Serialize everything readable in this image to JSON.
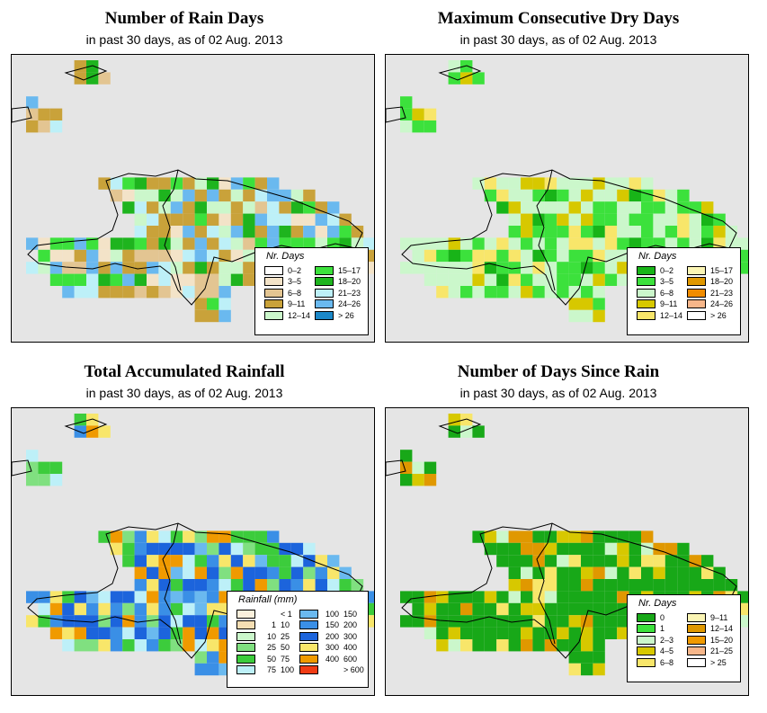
{
  "panels": [
    {
      "title": "Number of Rain Days",
      "subtitle": "in past 30 days, as of  02 Aug. 2013",
      "legend_title": "Nr. Days",
      "legend": [
        {
          "label": "0–2",
          "color": "#ffffff"
        },
        {
          "label": "3–5",
          "color": "#f3e3c8"
        },
        {
          "label": "6–8",
          "color": "#e3c592"
        },
        {
          "label": "9–11",
          "color": "#c9a23a"
        },
        {
          "label": "12–14",
          "color": "#cbf7cb"
        },
        {
          "label": "15–17",
          "color": "#3ce13c"
        },
        {
          "label": "18–20",
          "color": "#1eb41e"
        },
        {
          "label": "21–23",
          "color": "#bdf0f8"
        },
        {
          "label": "24–26",
          "color": "#6ab9ef"
        },
        {
          "label": "> 26",
          "color": "#1c88c8"
        }
      ]
    },
    {
      "title": "Maximum Consecutive Dry Days",
      "subtitle": "in past 30 days, as of  02 Aug. 2013",
      "legend_title": "Nr. Days",
      "legend": [
        {
          "label": "0–2",
          "color": "#18b418"
        },
        {
          "label": "3–5",
          "color": "#3ce13c"
        },
        {
          "label": "6–8",
          "color": "#cbf7cb"
        },
        {
          "label": "9–11",
          "color": "#d7c800"
        },
        {
          "label": "12–14",
          "color": "#f8e66a"
        },
        {
          "label": "15–17",
          "color": "#fbf5b4"
        },
        {
          "label": "18–20",
          "color": "#e09800"
        },
        {
          "label": "21–23",
          "color": "#f08c00"
        },
        {
          "label": "24–26",
          "color": "#f6b68a"
        },
        {
          "label": "> 26",
          "color": "#ffffff"
        }
      ]
    },
    {
      "title": "Total Accumulated Rainfall",
      "subtitle": "in past 30 days, as of  02 Aug. 2013",
      "legend_title": "Rainfall (mm)",
      "legend": [
        {
          "from": "",
          "to": "< 1",
          "color": "#fbf0dc"
        },
        {
          "from": "1",
          "to": "10",
          "color": "#f5deb3"
        },
        {
          "from": "10",
          "to": "25",
          "color": "#cbf7cb"
        },
        {
          "from": "25",
          "to": "50",
          "color": "#80e080"
        },
        {
          "from": "50",
          "to": "75",
          "color": "#3ccc3c"
        },
        {
          "from": "75",
          "to": "100",
          "color": "#bdf0f8"
        },
        {
          "from": "100",
          "to": "150",
          "color": "#6ab9ef"
        },
        {
          "from": "150",
          "to": "200",
          "color": "#3a8fe6"
        },
        {
          "from": "200",
          "to": "300",
          "color": "#1c64dc"
        },
        {
          "from": "300",
          "to": "400",
          "color": "#f8e66a"
        },
        {
          "from": "400",
          "to": "600",
          "color": "#f09a00"
        },
        {
          "from": "",
          "to": "> 600",
          "color": "#f03c14"
        }
      ]
    },
    {
      "title": "Number of Days Since Rain",
      "subtitle": "in past 30 days, as of  02 Aug. 2013",
      "legend_title": "Nr. Days",
      "legend": [
        {
          "label": "0",
          "color": "#18a818"
        },
        {
          "label": "1",
          "color": "#3ce13c"
        },
        {
          "label": "2–3",
          "color": "#cbf7cb"
        },
        {
          "label": "4–5",
          "color": "#d7c800"
        },
        {
          "label": "6–8",
          "color": "#f8e66a"
        },
        {
          "label": "9–11",
          "color": "#fbf5b4"
        },
        {
          "label": "12–14",
          "color": "#e09800"
        },
        {
          "label": "15–20",
          "color": "#f09a00"
        },
        {
          "label": "21–25",
          "color": "#f6b68a"
        },
        {
          "label": "> 25",
          "color": "#ffffff"
        }
      ]
    }
  ]
}
